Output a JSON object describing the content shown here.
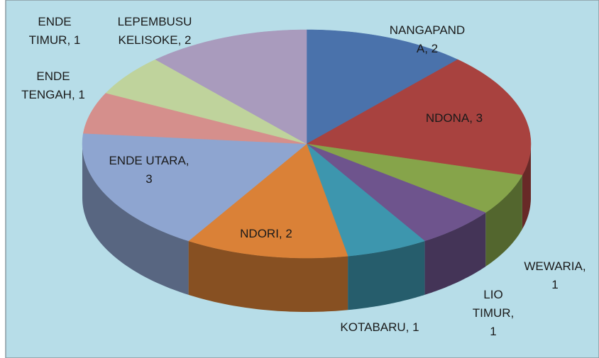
{
  "chart_data": {
    "type": "pie3d",
    "value_labels": [
      "NANGAPANDA, 2",
      "NDONA, 3",
      "WEWARIA, 1",
      "LIO TIMUR, 1",
      "KOTABARU, 1",
      "NDORI, 2",
      "ENDE UTARA, 3",
      "ENDE TENGAH, 1",
      "ENDE TIMUR, 1",
      "LEPEMBUSU KELISOKE, 2"
    ],
    "values": [
      2,
      3,
      1,
      1,
      1,
      2,
      3,
      1,
      1,
      2
    ],
    "colors": [
      "#4a72ab",
      "#a8423f",
      "#86a44a",
      "#6e548d",
      "#3d96ae",
      "#da8137",
      "#8ea5d0",
      "#d58f8c",
      "#bfd39c",
      "#a99bbd"
    ]
  }
}
